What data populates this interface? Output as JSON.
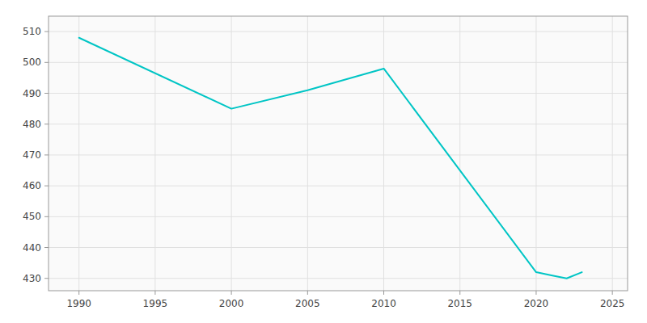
{
  "chart_data": {
    "type": "line",
    "x": [
      1990,
      2000,
      2005,
      2010,
      2020,
      2021,
      2022,
      2023
    ],
    "values": [
      508,
      485,
      491,
      498,
      432,
      431,
      430,
      432
    ],
    "color": "#00C5C5",
    "xlim": [
      1988,
      2026
    ],
    "ylim": [
      426,
      515
    ],
    "xticks": [
      1990,
      1995,
      2000,
      2005,
      2010,
      2015,
      2020,
      2025
    ],
    "yticks": [
      430,
      440,
      450,
      460,
      470,
      480,
      490,
      500,
      510
    ],
    "grid": true
  }
}
